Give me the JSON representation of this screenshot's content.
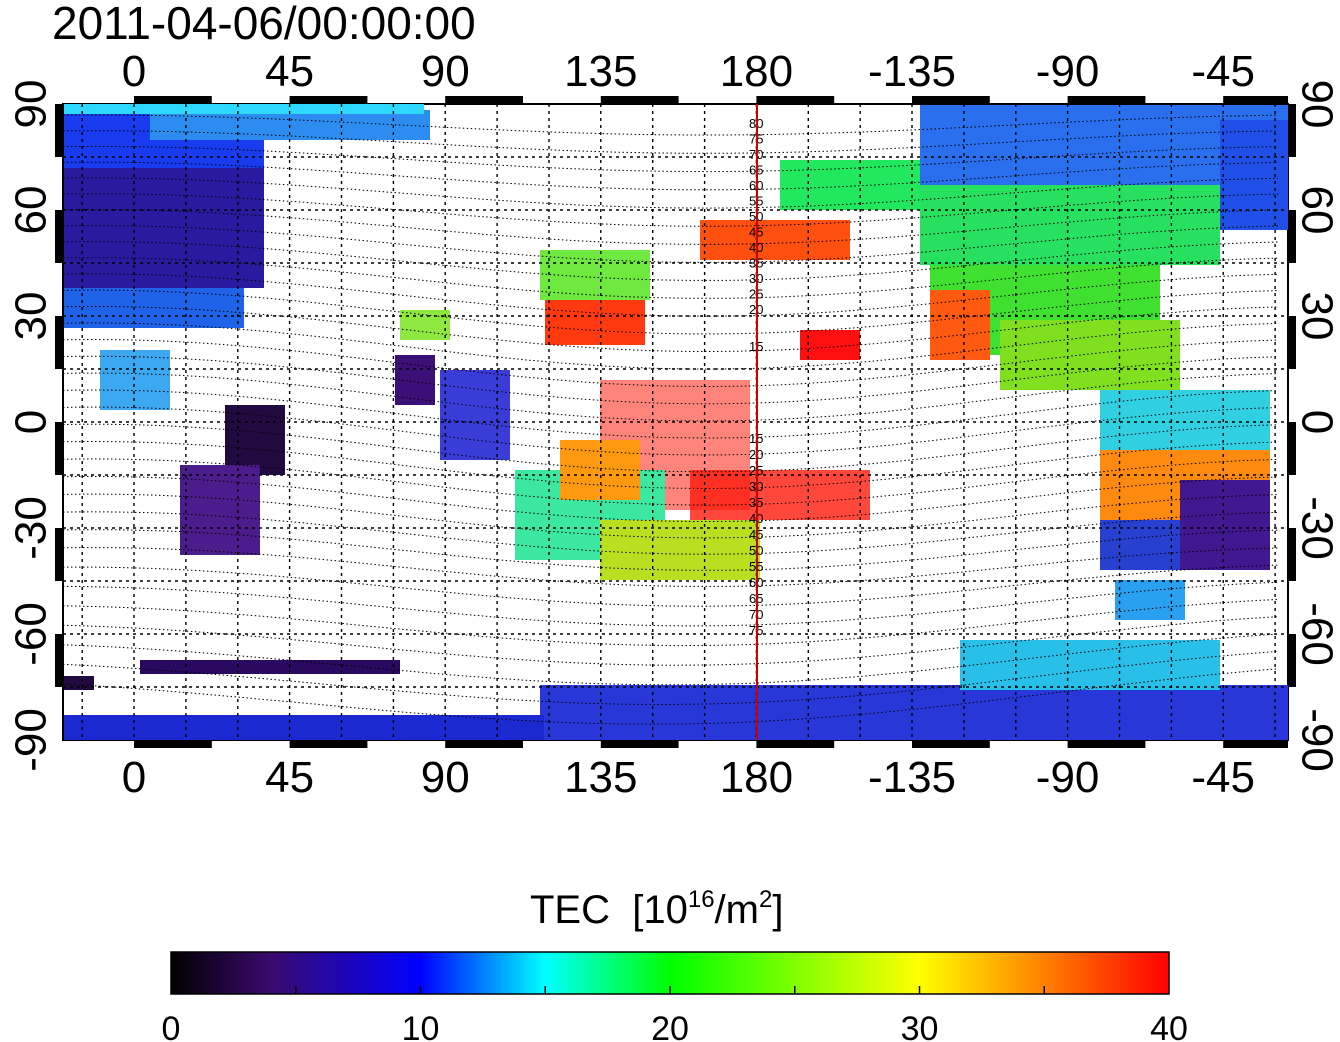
{
  "header": {
    "timestamp": "2011-04-06/00:00:00"
  },
  "map": {
    "type": "global TEC map (equirectangular)",
    "lon_ticks": [
      "0",
      "45",
      "90",
      "135",
      "180",
      "-135",
      "-90",
      "-45"
    ],
    "lat_ticks_left": [
      "90",
      "60",
      "30",
      "0",
      "-30",
      "-60",
      "-90"
    ],
    "lat_ticks_right": [
      "90",
      "60",
      "30",
      "0",
      "-30",
      "-60",
      "-90"
    ],
    "contour_labels": [
      "80",
      "75",
      "70",
      "65",
      "60",
      "55",
      "50",
      "45",
      "40",
      "35",
      "30",
      "25",
      "20",
      "15",
      "15",
      "20",
      "25",
      "30",
      "35",
      "40",
      "45",
      "50",
      "55",
      "60",
      "65",
      "70",
      "75"
    ],
    "meridian_line": {
      "lon": 180,
      "color": "#cc0000"
    }
  },
  "colorbar": {
    "title": "TEC",
    "unit_prefix": "[10",
    "unit_exp1": "16",
    "unit_mid": "/m",
    "unit_exp2": "2",
    "unit_suffix": "]",
    "min": 0,
    "max": 40,
    "tick_labels": [
      "0",
      "10",
      "20",
      "30",
      "40"
    ],
    "stops": [
      "#000000",
      "#3a0a6e",
      "#0000ff",
      "#00ffff",
      "#00ff00",
      "#ffff00",
      "#ff8000",
      "#ff0000"
    ]
  }
}
